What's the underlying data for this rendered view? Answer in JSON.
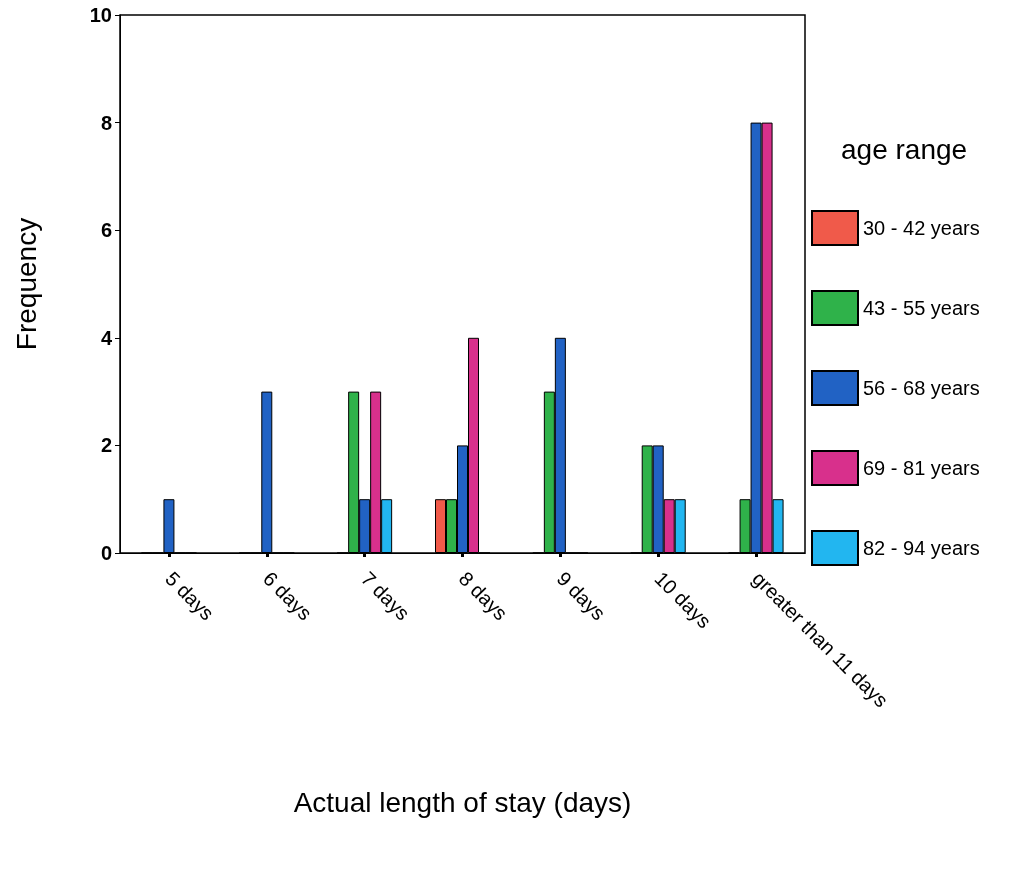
{
  "chart_data": {
    "type": "bar",
    "xlabel": "Actual length of stay (days)",
    "ylabel": "Frequency",
    "legend_title": "age range",
    "categories": [
      "5 days",
      "6 days",
      "7 days",
      "8 days",
      "9 days",
      "10 days",
      "greater than 11 days"
    ],
    "series": [
      {
        "name": "30 - 42 years",
        "color": "#f05a4a",
        "values": [
          0,
          0,
          0,
          1,
          0,
          0,
          0
        ]
      },
      {
        "name": "43 - 55 years",
        "color": "#2fb24a",
        "values": [
          0,
          0,
          3,
          1,
          3,
          2,
          1
        ]
      },
      {
        "name": "56 - 68 years",
        "color": "#2162c4",
        "values": [
          1,
          3,
          1,
          2,
          4,
          2,
          8
        ]
      },
      {
        "name": "69 - 81 years",
        "color": "#d8308c",
        "values": [
          0,
          0,
          3,
          4,
          0,
          1,
          8
        ]
      },
      {
        "name": "82 - 94 years",
        "color": "#22b6f0",
        "values": [
          0,
          0,
          1,
          0,
          0,
          1,
          1
        ]
      }
    ],
    "ylim": [
      0,
      10
    ],
    "yticks": [
      0,
      2,
      4,
      6,
      8,
      10
    ],
    "grid": false,
    "legend": "right"
  }
}
